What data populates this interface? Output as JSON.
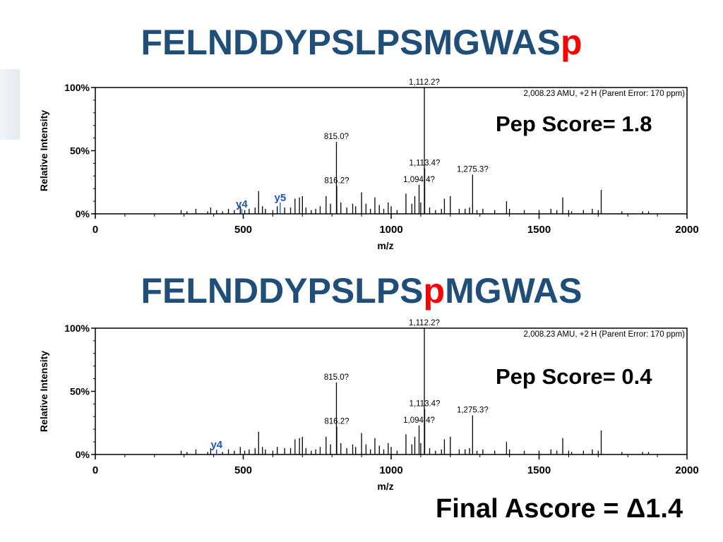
{
  "titles": [
    {
      "prefix": "FELNDDYPSLPSMGWAS",
      "site": "p",
      "suffix": ""
    },
    {
      "prefix": "FELNDDYPSLPS",
      "site": "p",
      "suffix": "MGWAS"
    }
  ],
  "pep_scores": [
    "Pep Score= 1.8",
    "Pep Score= 0.4"
  ],
  "final_ascore": "Final Ascore = Δ1.4",
  "colors": {
    "title": "#1f4e79",
    "site": "#ff0000",
    "ion_label": "#1a56c4",
    "text": "#000000"
  },
  "chart_data": [
    {
      "type": "bar",
      "xlabel": "m/z",
      "ylabel": "Relative Intensity",
      "xlim": [
        0,
        2000
      ],
      "ylim": [
        0,
        100
      ],
      "x_ticks": [
        "0",
        "500",
        "1000",
        "1500",
        "2000"
      ],
      "y_ticks": [
        "0%",
        "50%",
        "100%"
      ],
      "info": "2,008.23 AMU, +2 H (Parent Error: 170 ppm)",
      "peaks": [
        {
          "mz": 290,
          "intensity": 3
        },
        {
          "mz": 310,
          "intensity": 2
        },
        {
          "mz": 340,
          "intensity": 4
        },
        {
          "mz": 380,
          "intensity": 2
        },
        {
          "mz": 390,
          "intensity": 5
        },
        {
          "mz": 410,
          "intensity": 3
        },
        {
          "mz": 430,
          "intensity": 2
        },
        {
          "mz": 450,
          "intensity": 4
        },
        {
          "mz": 470,
          "intensity": 3
        },
        {
          "mz": 490,
          "intensity": 6
        },
        {
          "mz": 505,
          "intensity": 3
        },
        {
          "mz": 520,
          "intensity": 4
        },
        {
          "mz": 540,
          "intensity": 5
        },
        {
          "mz": 552,
          "intensity": 18
        },
        {
          "mz": 565,
          "intensity": 6
        },
        {
          "mz": 575,
          "intensity": 4
        },
        {
          "mz": 600,
          "intensity": 3
        },
        {
          "mz": 615,
          "intensity": 6
        },
        {
          "mz": 640,
          "intensity": 5
        },
        {
          "mz": 660,
          "intensity": 5
        },
        {
          "mz": 675,
          "intensity": 12
        },
        {
          "mz": 690,
          "intensity": 13
        },
        {
          "mz": 700,
          "intensity": 14
        },
        {
          "mz": 712,
          "intensity": 5
        },
        {
          "mz": 730,
          "intensity": 3
        },
        {
          "mz": 745,
          "intensity": 4
        },
        {
          "mz": 760,
          "intensity": 6
        },
        {
          "mz": 780,
          "intensity": 14
        },
        {
          "mz": 795,
          "intensity": 8
        },
        {
          "mz": 815,
          "intensity": 57,
          "label": "815.0?"
        },
        {
          "mz": 816.2,
          "intensity": 22,
          "label": "816.2?"
        },
        {
          "mz": 830,
          "intensity": 9
        },
        {
          "mz": 850,
          "intensity": 5
        },
        {
          "mz": 870,
          "intensity": 8
        },
        {
          "mz": 880,
          "intensity": 6
        },
        {
          "mz": 900,
          "intensity": 17
        },
        {
          "mz": 915,
          "intensity": 8
        },
        {
          "mz": 930,
          "intensity": 4
        },
        {
          "mz": 945,
          "intensity": 13
        },
        {
          "mz": 960,
          "intensity": 7
        },
        {
          "mz": 975,
          "intensity": 4
        },
        {
          "mz": 990,
          "intensity": 9
        },
        {
          "mz": 1000,
          "intensity": 6
        },
        {
          "mz": 1020,
          "intensity": 3
        },
        {
          "mz": 1050,
          "intensity": 16
        },
        {
          "mz": 1070,
          "intensity": 8
        },
        {
          "mz": 1080,
          "intensity": 14
        },
        {
          "mz": 1094.4,
          "intensity": 23,
          "label": "1,094.4?"
        },
        {
          "mz": 1100,
          "intensity": 9
        },
        {
          "mz": 1112.2,
          "intensity": 100,
          "label": "1,112.2?"
        },
        {
          "mz": 1113.4,
          "intensity": 36,
          "label": "1,113.4?"
        },
        {
          "mz": 1130,
          "intensity": 5
        },
        {
          "mz": 1150,
          "intensity": 3
        },
        {
          "mz": 1170,
          "intensity": 4
        },
        {
          "mz": 1180,
          "intensity": 12
        },
        {
          "mz": 1200,
          "intensity": 14
        },
        {
          "mz": 1230,
          "intensity": 4
        },
        {
          "mz": 1250,
          "intensity": 4
        },
        {
          "mz": 1265,
          "intensity": 5
        },
        {
          "mz": 1275.3,
          "intensity": 31,
          "label": "1,275.3?"
        },
        {
          "mz": 1290,
          "intensity": 3
        },
        {
          "mz": 1310,
          "intensity": 4
        },
        {
          "mz": 1350,
          "intensity": 3
        },
        {
          "mz": 1390,
          "intensity": 10
        },
        {
          "mz": 1400,
          "intensity": 4
        },
        {
          "mz": 1450,
          "intensity": 3
        },
        {
          "mz": 1500,
          "intensity": 3
        },
        {
          "mz": 1540,
          "intensity": 4
        },
        {
          "mz": 1560,
          "intensity": 3
        },
        {
          "mz": 1580,
          "intensity": 13
        },
        {
          "mz": 1600,
          "intensity": 3
        },
        {
          "mz": 1610,
          "intensity": 2
        },
        {
          "mz": 1650,
          "intensity": 3
        },
        {
          "mz": 1680,
          "intensity": 4
        },
        {
          "mz": 1700,
          "intensity": 3
        },
        {
          "mz": 1710,
          "intensity": 19
        },
        {
          "mz": 1780,
          "intensity": 2
        },
        {
          "mz": 1850,
          "intensity": 2
        },
        {
          "mz": 1870,
          "intensity": 2
        }
      ],
      "ion_labels": [
        {
          "label": "y4",
          "mz": 495,
          "intensity": 4
        },
        {
          "label": "y5",
          "mz": 625,
          "intensity": 9
        }
      ]
    },
    {
      "type": "bar",
      "xlabel": "m/z",
      "ylabel": "Relative Intensity",
      "xlim": [
        0,
        2000
      ],
      "ylim": [
        0,
        100
      ],
      "x_ticks": [
        "0",
        "500",
        "1000",
        "1500",
        "2000"
      ],
      "y_ticks": [
        "0%",
        "50%",
        "100%"
      ],
      "info": "2,008.23 AMU, +2 H (Parent Error: 170 ppm)",
      "peaks": [
        {
          "mz": 290,
          "intensity": 3
        },
        {
          "mz": 310,
          "intensity": 2
        },
        {
          "mz": 340,
          "intensity": 4
        },
        {
          "mz": 380,
          "intensity": 2
        },
        {
          "mz": 390,
          "intensity": 5
        },
        {
          "mz": 410,
          "intensity": 3
        },
        {
          "mz": 430,
          "intensity": 2
        },
        {
          "mz": 450,
          "intensity": 4
        },
        {
          "mz": 470,
          "intensity": 3
        },
        {
          "mz": 490,
          "intensity": 6
        },
        {
          "mz": 505,
          "intensity": 3
        },
        {
          "mz": 520,
          "intensity": 4
        },
        {
          "mz": 540,
          "intensity": 5
        },
        {
          "mz": 552,
          "intensity": 18
        },
        {
          "mz": 565,
          "intensity": 6
        },
        {
          "mz": 575,
          "intensity": 4
        },
        {
          "mz": 600,
          "intensity": 3
        },
        {
          "mz": 615,
          "intensity": 6
        },
        {
          "mz": 640,
          "intensity": 5
        },
        {
          "mz": 660,
          "intensity": 5
        },
        {
          "mz": 675,
          "intensity": 12
        },
        {
          "mz": 690,
          "intensity": 13
        },
        {
          "mz": 700,
          "intensity": 14
        },
        {
          "mz": 712,
          "intensity": 5
        },
        {
          "mz": 730,
          "intensity": 3
        },
        {
          "mz": 745,
          "intensity": 4
        },
        {
          "mz": 760,
          "intensity": 6
        },
        {
          "mz": 780,
          "intensity": 14
        },
        {
          "mz": 795,
          "intensity": 8
        },
        {
          "mz": 815,
          "intensity": 57,
          "label": "815.0?"
        },
        {
          "mz": 816.2,
          "intensity": 22,
          "label": "816.2?"
        },
        {
          "mz": 830,
          "intensity": 9
        },
        {
          "mz": 850,
          "intensity": 5
        },
        {
          "mz": 870,
          "intensity": 8
        },
        {
          "mz": 880,
          "intensity": 6
        },
        {
          "mz": 900,
          "intensity": 17
        },
        {
          "mz": 915,
          "intensity": 8
        },
        {
          "mz": 930,
          "intensity": 4
        },
        {
          "mz": 945,
          "intensity": 13
        },
        {
          "mz": 960,
          "intensity": 7
        },
        {
          "mz": 975,
          "intensity": 4
        },
        {
          "mz": 990,
          "intensity": 9
        },
        {
          "mz": 1000,
          "intensity": 6
        },
        {
          "mz": 1020,
          "intensity": 3
        },
        {
          "mz": 1050,
          "intensity": 16
        },
        {
          "mz": 1070,
          "intensity": 8
        },
        {
          "mz": 1080,
          "intensity": 14
        },
        {
          "mz": 1094.4,
          "intensity": 23,
          "label": "1,094.4?"
        },
        {
          "mz": 1100,
          "intensity": 9
        },
        {
          "mz": 1112.2,
          "intensity": 100,
          "label": "1,112.2?"
        },
        {
          "mz": 1113.4,
          "intensity": 36,
          "label": "1,113.4?"
        },
        {
          "mz": 1130,
          "intensity": 5
        },
        {
          "mz": 1150,
          "intensity": 3
        },
        {
          "mz": 1170,
          "intensity": 4
        },
        {
          "mz": 1180,
          "intensity": 12
        },
        {
          "mz": 1200,
          "intensity": 14
        },
        {
          "mz": 1230,
          "intensity": 4
        },
        {
          "mz": 1250,
          "intensity": 4
        },
        {
          "mz": 1265,
          "intensity": 5
        },
        {
          "mz": 1275.3,
          "intensity": 31,
          "label": "1,275.3?"
        },
        {
          "mz": 1290,
          "intensity": 3
        },
        {
          "mz": 1310,
          "intensity": 4
        },
        {
          "mz": 1350,
          "intensity": 3
        },
        {
          "mz": 1390,
          "intensity": 10
        },
        {
          "mz": 1400,
          "intensity": 4
        },
        {
          "mz": 1450,
          "intensity": 3
        },
        {
          "mz": 1500,
          "intensity": 3
        },
        {
          "mz": 1540,
          "intensity": 4
        },
        {
          "mz": 1560,
          "intensity": 3
        },
        {
          "mz": 1580,
          "intensity": 13
        },
        {
          "mz": 1600,
          "intensity": 3
        },
        {
          "mz": 1610,
          "intensity": 2
        },
        {
          "mz": 1650,
          "intensity": 3
        },
        {
          "mz": 1680,
          "intensity": 4
        },
        {
          "mz": 1700,
          "intensity": 3
        },
        {
          "mz": 1710,
          "intensity": 19
        },
        {
          "mz": 1780,
          "intensity": 2
        },
        {
          "mz": 1850,
          "intensity": 2
        },
        {
          "mz": 1870,
          "intensity": 2
        }
      ],
      "ion_labels": [
        {
          "label": "y4",
          "mz": 410,
          "intensity": 4
        }
      ]
    }
  ]
}
